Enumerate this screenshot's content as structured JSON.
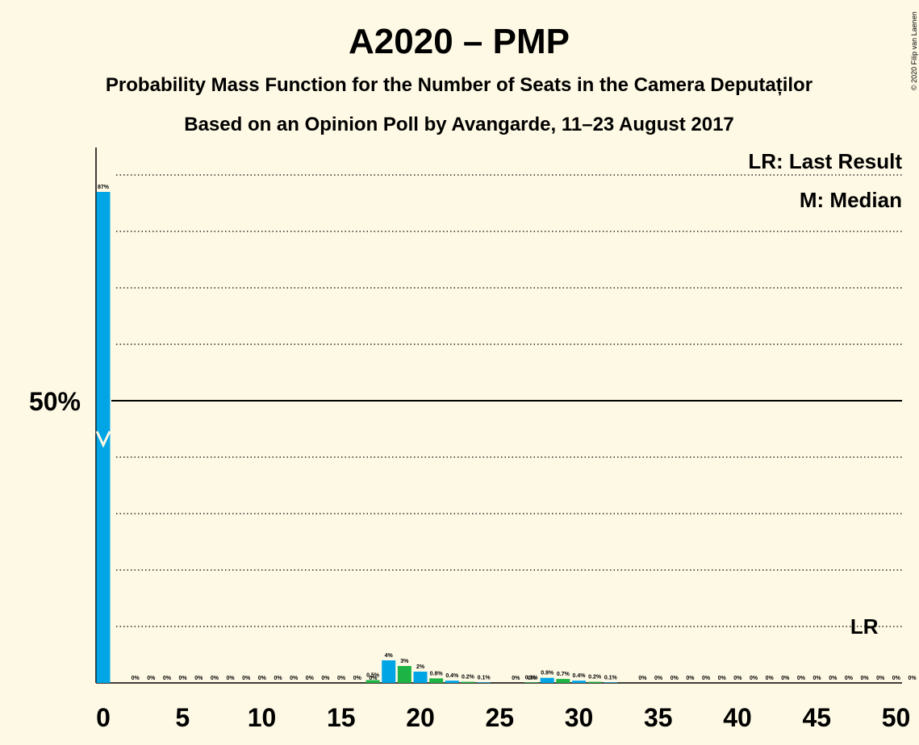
{
  "chart_data": {
    "type": "bar",
    "title": "A2020 – PMP",
    "subtitle": "Probability Mass Function for the Number of Seats in the Camera Deputaților",
    "subtitle2": "Based on an Opinion Poll by Avangarde, 11–23 August 2017",
    "copyright": "© 2020 Filip van Laenen",
    "legend": {
      "last_result": "LR: Last Result",
      "median": "M: Median",
      "placement": "top-right"
    },
    "lr_marker": "LR",
    "last_result_seats": 48,
    "median_seats": 0,
    "ytick_label": "50%",
    "ytick_value": 50,
    "ylim": [
      0,
      100
    ],
    "gridlines": [
      10,
      20,
      30,
      40,
      60,
      70,
      80,
      90
    ],
    "xlim": [
      0,
      50
    ],
    "xticks": [
      0,
      5,
      10,
      15,
      20,
      25,
      30,
      35,
      40,
      45,
      50
    ],
    "colors": {
      "background": "#FEF9E4",
      "blue": "#00A5E6",
      "green": "#1DB345"
    },
    "x": [
      0,
      1,
      2,
      3,
      4,
      5,
      6,
      7,
      8,
      9,
      10,
      11,
      12,
      13,
      14,
      15,
      16,
      17,
      18,
      19,
      20,
      21,
      22,
      23,
      24,
      25,
      26,
      27,
      28,
      29,
      30,
      31,
      32,
      33,
      34,
      35,
      36,
      37,
      38,
      39,
      40,
      41,
      42,
      43,
      44,
      45,
      46,
      47,
      48,
      49,
      50
    ],
    "values": [
      87,
      0,
      0,
      0,
      0,
      0,
      0,
      0,
      0,
      0,
      0,
      0,
      0,
      0,
      0,
      0,
      0,
      0.5,
      4,
      3,
      2,
      0.8,
      0.4,
      0.2,
      0.1,
      0,
      0,
      0.1,
      0.9,
      0.7,
      0.4,
      0.2,
      0.1,
      0,
      0,
      0,
      0,
      0,
      0,
      0,
      0,
      0,
      0,
      0,
      0,
      0,
      0,
      0,
      0,
      0,
      0
    ],
    "labels": [
      "87%",
      "0%",
      "0%",
      "0%",
      "0%",
      "0%",
      "0%",
      "0%",
      "0%",
      "0%",
      "0%",
      "0%",
      "0%",
      "0%",
      "0%",
      "0%",
      "0%",
      "0.5%",
      "4%",
      "3%",
      "2%",
      "0.8%",
      "0.4%",
      "0.2%",
      "0.1%",
      "0%",
      "0%",
      "0.1%",
      "0.9%",
      "0.7%",
      "0.4%",
      "0.2%",
      "0.1%",
      "0%",
      "0%",
      "0%",
      "0%",
      "0%",
      "0%",
      "0%",
      "0%",
      "0%",
      "0%",
      "0%",
      "0%",
      "0%",
      "0%",
      "0%",
      "0%",
      "0%",
      "0%"
    ],
    "bar_colors": [
      "blue",
      "blue",
      "blue",
      "blue",
      "blue",
      "blue",
      "blue",
      "blue",
      "blue",
      "blue",
      "blue",
      "blue",
      "blue",
      "blue",
      "blue",
      "blue",
      "blue",
      "green",
      "blue",
      "green",
      "blue",
      "green",
      "blue",
      "green",
      "blue",
      "green",
      "blue",
      "green",
      "blue",
      "green",
      "blue",
      "green",
      "blue",
      "green",
      "blue",
      "green",
      "blue",
      "green",
      "blue",
      "green",
      "blue",
      "green",
      "blue",
      "green",
      "blue",
      "green",
      "blue",
      "green",
      "blue",
      "green",
      "blue"
    ]
  }
}
